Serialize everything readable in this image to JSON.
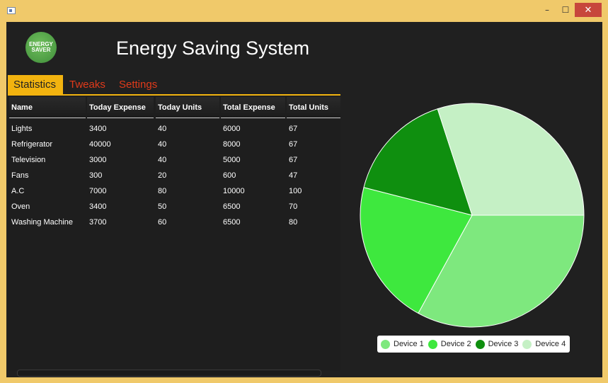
{
  "window": {
    "icon": "window-app-icon",
    "minimize_label": "–",
    "maximize_label": "☐",
    "close_label": "✕"
  },
  "header": {
    "logo_line1": "ENERGY",
    "logo_line2": "SAVER",
    "title": "Energy Saving System"
  },
  "tabs": [
    {
      "label": "Statistics",
      "active": true
    },
    {
      "label": "Tweaks",
      "active": false
    },
    {
      "label": "Settings",
      "active": false
    }
  ],
  "table": {
    "columns": [
      "Name",
      "Today Expense",
      "Today Units",
      "Total Expense",
      "Total Units"
    ],
    "rows": [
      [
        "Lights",
        "3400",
        "40",
        "6000",
        "67"
      ],
      [
        "Refrigerator",
        "40000",
        "40",
        "8000",
        "67"
      ],
      [
        "Television",
        "3000",
        "40",
        "5000",
        "67"
      ],
      [
        "Fans",
        "300",
        "20",
        "600",
        "47"
      ],
      [
        "A.C",
        "7000",
        "80",
        "10000",
        "100"
      ],
      [
        "Oven",
        "3400",
        "50",
        "6500",
        "70"
      ],
      [
        "Washing Machine",
        "3700",
        "60",
        "6500",
        "80"
      ]
    ]
  },
  "colors": {
    "accent": "#f2b30f",
    "inactive_tab": "#e03a1a",
    "background": "#202020"
  },
  "chart_data": {
    "type": "pie",
    "series": [
      {
        "name": "Device 1",
        "value": 0.33,
        "color": "#7ee87e"
      },
      {
        "name": "Device 2",
        "value": 0.21,
        "color": "#3ee83e"
      },
      {
        "name": "Device 3",
        "value": 0.16,
        "color": "#0f8f0f"
      },
      {
        "name": "Device 4",
        "value": 0.3,
        "color": "#c5f0c5"
      }
    ],
    "start_angle_deg": 0,
    "direction": "clockwise",
    "legend_position": "bottom"
  }
}
